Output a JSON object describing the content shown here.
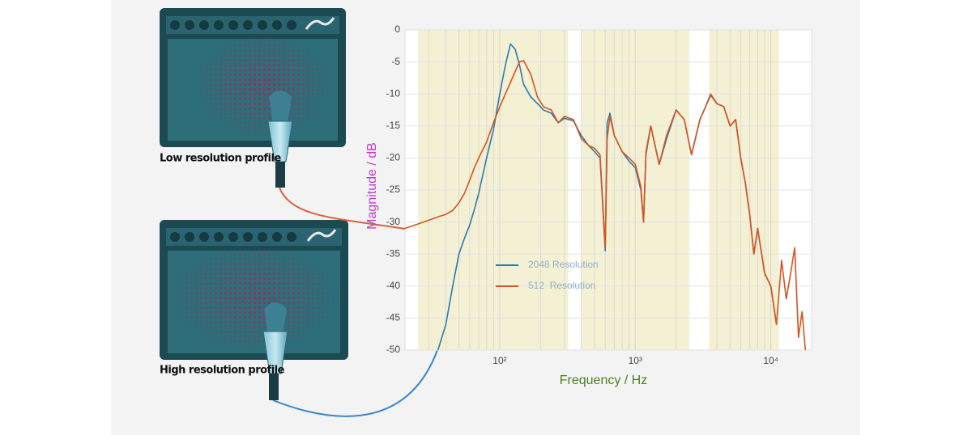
{
  "profiles": [
    "Low resolution profile",
    "High resolution profile"
  ],
  "chart_data": {
    "type": "line",
    "xlabel": "Frequency / Hz",
    "ylabel": "Magnitude / dB",
    "xscale": "log",
    "xlim": [
      20,
      20000
    ],
    "ylim": [
      -50,
      0
    ],
    "xticks": [
      {
        "value": 100,
        "label": "10²"
      },
      {
        "value": 1000,
        "label": "10³"
      },
      {
        "value": 10000,
        "label": "10⁴"
      }
    ],
    "minor_xticks": [
      30,
      40,
      50,
      60,
      70,
      80,
      90,
      200,
      300,
      400,
      500,
      600,
      700,
      800,
      900,
      2000,
      3000,
      4000,
      5000,
      6000,
      7000,
      8000,
      9000
    ],
    "yticks": [
      0,
      -5,
      -10,
      -15,
      -20,
      -25,
      -30,
      -35,
      -40,
      -45,
      -50
    ],
    "grid": true,
    "shaded_ranges": [
      [
        25,
        320
      ],
      [
        400,
        2500
      ],
      [
        3500,
        11500
      ]
    ],
    "shade_color": "#f4f0d4",
    "legend": "center left",
    "x": [
      20,
      25,
      30,
      35,
      40,
      45,
      50,
      55,
      60,
      65,
      70,
      80,
      90,
      100,
      110,
      120,
      130,
      140,
      150,
      170,
      190,
      210,
      240,
      270,
      300,
      350,
      400,
      450,
      500,
      550,
      600,
      620,
      650,
      700,
      800,
      900,
      1000,
      1100,
      1150,
      1200,
      1300,
      1500,
      1700,
      2000,
      2300,
      2600,
      3000,
      3300,
      3600,
      4000,
      4500,
      5000,
      5500,
      6000,
      6500,
      7000,
      7500,
      8000,
      9000,
      10000,
      11000,
      12000,
      13000,
      14000,
      15000,
      16000,
      17000,
      18000
    ],
    "series": [
      {
        "name": "2048 Resolution",
        "color": "#2b7bb0",
        "values": [
          null,
          null,
          null,
          -50,
          -46,
          -40,
          -35,
          -32.5,
          -30.5,
          -28,
          -25.5,
          -20,
          -15.5,
          -10,
          -5.5,
          -2.2,
          -3,
          -5.5,
          -8.5,
          -10.5,
          -11.5,
          -12.5,
          -13,
          -14.5,
          -13.8,
          -14.2,
          -16.5,
          -18,
          -19,
          -20,
          -34.5,
          -14.5,
          -13,
          -16.5,
          -19,
          -20.5,
          -21.5,
          -25,
          -30,
          -19.5,
          -15,
          -21,
          -17,
          -12.5,
          -14,
          -19.5,
          -14,
          -12,
          -10.2,
          -11.5,
          -12,
          -15,
          -14,
          -20,
          -24,
          -29,
          -35,
          -31,
          -38,
          -40,
          -46,
          null,
          null,
          null,
          null,
          null,
          null,
          null
        ]
      },
      {
        "name": "512  Resolution",
        "color": "#d9531e",
        "values": [
          -31,
          -30.3,
          -29.7,
          -29.2,
          -28.8,
          -28.2,
          -27,
          -25.5,
          -23.5,
          -21.5,
          -20,
          -17.5,
          -14.5,
          -12,
          -10,
          -8.2,
          -6.5,
          -5,
          -4.8,
          -7,
          -10.5,
          -12,
          -12.5,
          -14.5,
          -13.5,
          -14,
          -17,
          -18,
          -18.5,
          -19.5,
          -34,
          -17,
          -13.5,
          -16.5,
          -19,
          -20,
          -21,
          -24.5,
          -30,
          -19,
          -15,
          -21,
          -16.5,
          -12.5,
          -14,
          -19.5,
          -14,
          -12,
          -10,
          -11.5,
          -12,
          -15,
          -14,
          -20,
          -24,
          -29,
          -35,
          -31,
          -38,
          -40,
          -46,
          -36,
          -42,
          -38,
          -34,
          -48,
          -44,
          -50
        ]
      }
    ]
  }
}
